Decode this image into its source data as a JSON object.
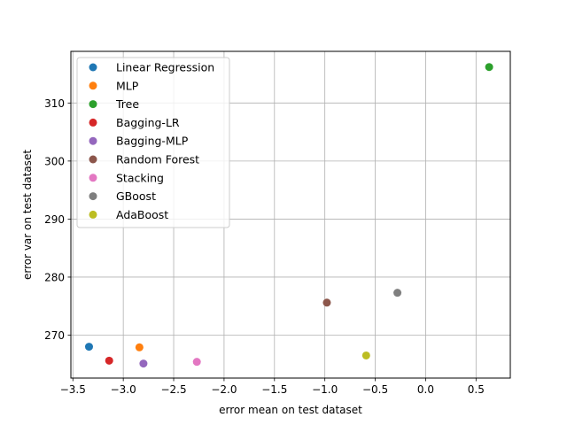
{
  "chart_data": {
    "type": "scatter",
    "xlabel": "error mean on test dataset",
    "ylabel": "error var on test dataset",
    "xlim": [
      -3.52,
      0.84
    ],
    "ylim": [
      262.6,
      318.9
    ],
    "xticks": [
      -3.5,
      -3.0,
      -2.5,
      -2.0,
      -1.5,
      -1.0,
      -0.5,
      0.0,
      0.5
    ],
    "xtick_labels": [
      "−3.5",
      "−3.0",
      "−2.5",
      "−2.0",
      "−1.5",
      "−1.0",
      "−0.5",
      "0.0",
      "0.5"
    ],
    "yticks": [
      270,
      280,
      290,
      300,
      310
    ],
    "ytick_labels": [
      "270",
      "280",
      "290",
      "300",
      "310"
    ],
    "grid": true,
    "legend_position": "top-left",
    "series": [
      {
        "name": "Linear Regression",
        "color": "#1f77b4",
        "x": [
          -3.34
        ],
        "y": [
          268.0
        ]
      },
      {
        "name": "MLP",
        "color": "#ff7f0e",
        "x": [
          -2.84
        ],
        "y": [
          267.9
        ]
      },
      {
        "name": "Tree",
        "color": "#2ca02c",
        "x": [
          0.63
        ],
        "y": [
          316.2
        ]
      },
      {
        "name": "Bagging-LR",
        "color": "#d62728",
        "x": [
          -3.14
        ],
        "y": [
          265.6
        ]
      },
      {
        "name": "Bagging-MLP",
        "color": "#9467bd",
        "x": [
          -2.8
        ],
        "y": [
          265.1
        ]
      },
      {
        "name": "Random Forest",
        "color": "#8c564b",
        "x": [
          -0.98
        ],
        "y": [
          275.6
        ]
      },
      {
        "name": "Stacking",
        "color": "#e377c2",
        "x": [
          -2.27
        ],
        "y": [
          265.4
        ]
      },
      {
        "name": "GBoost",
        "color": "#7f7f7f",
        "x": [
          -0.28
        ],
        "y": [
          277.3
        ]
      },
      {
        "name": "AdaBoost",
        "color": "#bcbd22",
        "x": [
          -0.59
        ],
        "y": [
          266.5
        ]
      }
    ]
  }
}
